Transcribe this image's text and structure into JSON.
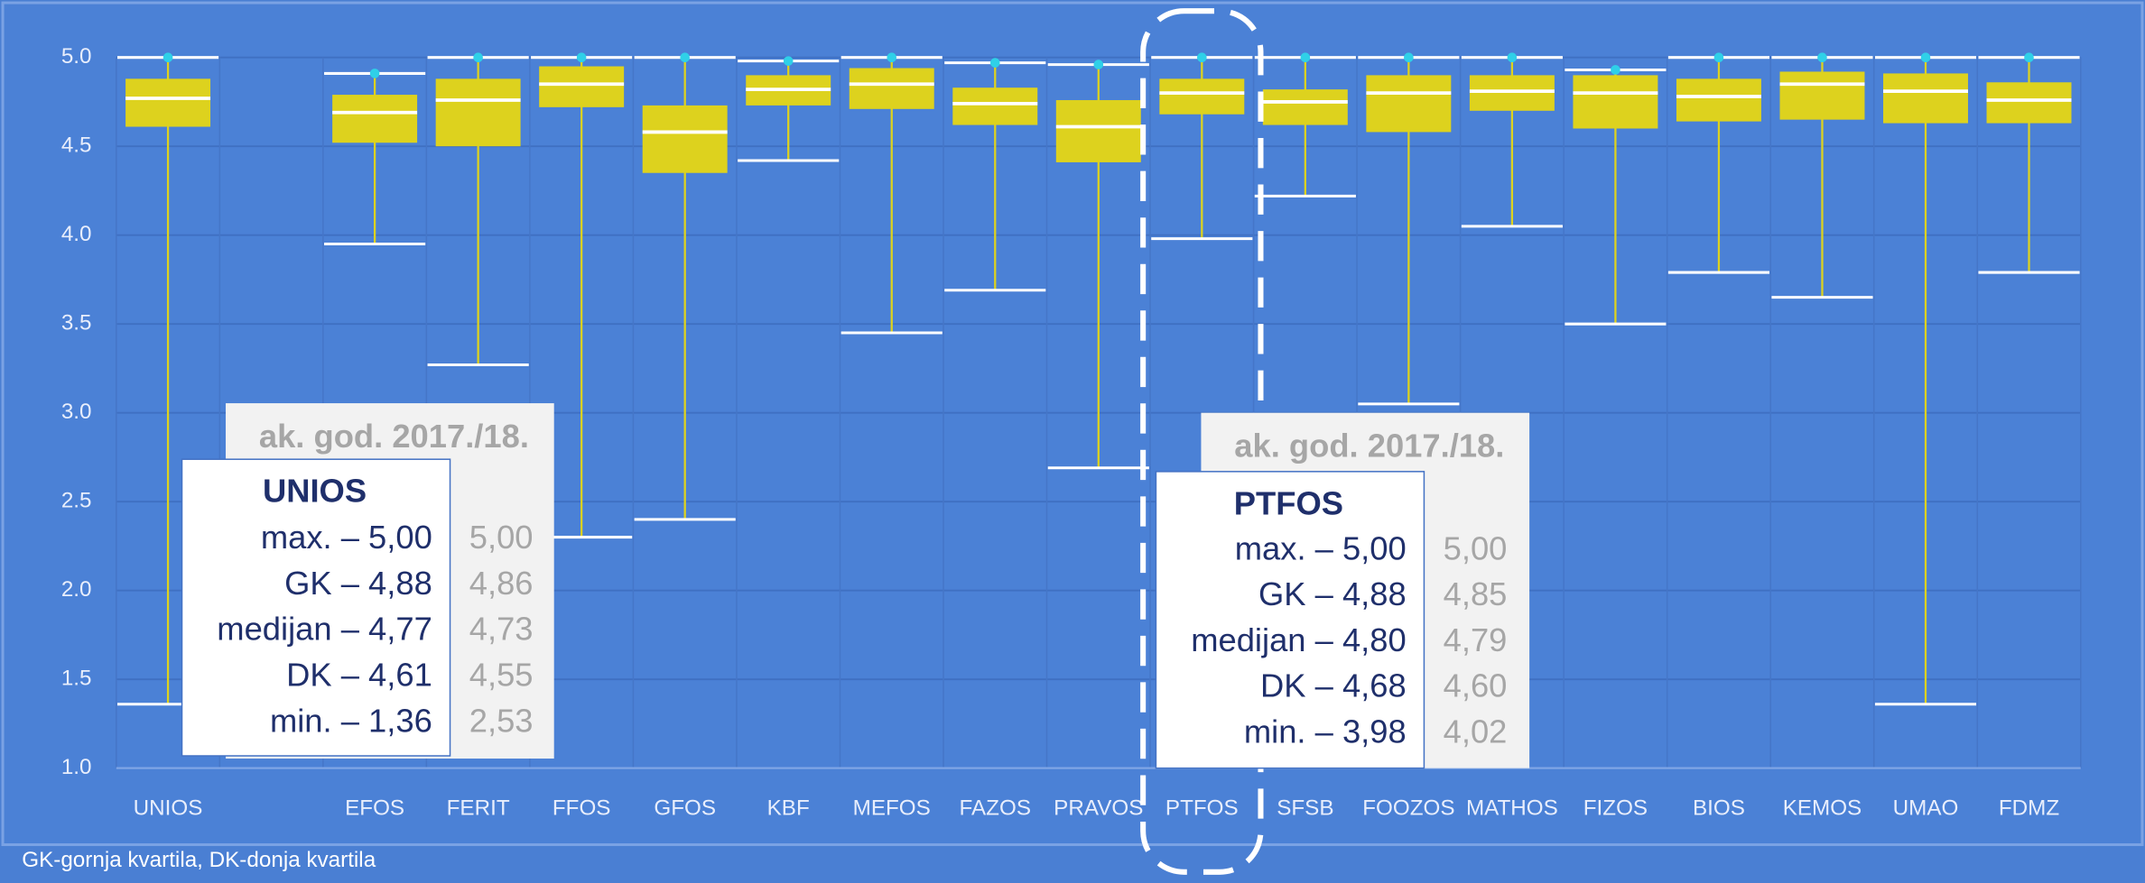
{
  "chart_data": {
    "type": "box",
    "categories": [
      "UNIOS",
      null,
      "EFOS",
      "FERIT",
      "FFOS",
      "GFOS",
      "KBF",
      "MEFOS",
      "FAZOS",
      "PRAVOS",
      "PTFOS",
      "SFSB",
      "FOOZOS",
      "MATHOS",
      "FIZOS",
      "BIOS",
      "KEMOS",
      "UMAO",
      "FDMZ"
    ],
    "boxes": [
      {
        "min": 1.36,
        "q1": 4.61,
        "median": 4.77,
        "q3": 4.88,
        "max": 5.0
      },
      null,
      {
        "min": 3.95,
        "q1": 4.52,
        "median": 4.69,
        "q3": 4.79,
        "max": 4.91
      },
      {
        "min": 3.27,
        "q1": 4.5,
        "median": 4.76,
        "q3": 4.88,
        "max": 5.0
      },
      {
        "min": 2.3,
        "q1": 4.72,
        "median": 4.85,
        "q3": 4.95,
        "max": 5.0
      },
      {
        "min": 2.4,
        "q1": 4.35,
        "median": 4.58,
        "q3": 4.73,
        "max": 5.0
      },
      {
        "min": 4.42,
        "q1": 4.73,
        "median": 4.82,
        "q3": 4.9,
        "max": 4.98
      },
      {
        "min": 3.45,
        "q1": 4.71,
        "median": 4.85,
        "q3": 4.94,
        "max": 5.0
      },
      {
        "min": 3.69,
        "q1": 4.62,
        "median": 4.74,
        "q3": 4.83,
        "max": 4.97
      },
      {
        "min": 2.69,
        "q1": 4.41,
        "median": 4.61,
        "q3": 4.76,
        "max": 4.96
      },
      {
        "min": 3.98,
        "q1": 4.68,
        "median": 4.8,
        "q3": 4.88,
        "max": 5.0
      },
      {
        "min": 4.22,
        "q1": 4.62,
        "median": 4.75,
        "q3": 4.82,
        "max": 5.0
      },
      {
        "min": 3.05,
        "q1": 4.58,
        "median": 4.8,
        "q3": 4.9,
        "max": 5.0
      },
      {
        "min": 4.05,
        "q1": 4.7,
        "median": 4.81,
        "q3": 4.9,
        "max": 5.0
      },
      {
        "min": 3.5,
        "q1": 4.6,
        "median": 4.8,
        "q3": 4.9,
        "max": 4.93
      },
      {
        "min": 3.79,
        "q1": 4.64,
        "median": 4.78,
        "q3": 4.88,
        "max": 5.0
      },
      {
        "min": 3.65,
        "q1": 4.65,
        "median": 4.85,
        "q3": 4.92,
        "max": 5.0
      },
      {
        "min": 1.36,
        "q1": 4.63,
        "median": 4.81,
        "q3": 4.91,
        "max": 5.0
      },
      {
        "min": 3.79,
        "q1": 4.63,
        "median": 4.76,
        "q3": 4.86,
        "max": 5.0
      }
    ],
    "box_color": "#ddd21e",
    "median_color": "#ffffff",
    "dot_color": "#2fd0e8",
    "ylim": [
      1,
      5
    ],
    "yticks": [
      {
        "value": 1,
        "label": "1.0"
      },
      {
        "value": 1.5,
        "label": "1.5"
      },
      {
        "value": 2,
        "label": "2.0"
      },
      {
        "value": 2.5,
        "label": "2.5"
      },
      {
        "value": 3,
        "label": "3.0"
      },
      {
        "value": 3.5,
        "label": "3.5"
      },
      {
        "value": 4,
        "label": "4.0"
      },
      {
        "value": 4.5,
        "label": "4.5"
      },
      {
        "value": 5,
        "label": "5.0"
      }
    ],
    "grid": true,
    "footnote": "GK-gornja kvartila, DK-donja kvartila",
    "annotations": [
      {
        "year_label": "ak. god. 2017./18.",
        "title": "UNIOS",
        "rows": [
          {
            "label": "max. – 5,00",
            "previous": "5,00"
          },
          {
            "label": "GK – 4,88",
            "previous": "4,86"
          },
          {
            "label": "medijan – 4,77",
            "previous": "4,73"
          },
          {
            "label": "DK – 4,61",
            "previous": "4,55"
          },
          {
            "label": "min. – 1,36",
            "previous": "2,53"
          }
        ]
      },
      {
        "year_label": "ak. god. 2017./18.",
        "title": "PTFOS",
        "rows": [
          {
            "label": "max. – 5,00",
            "previous": "5,00"
          },
          {
            "label": "GK – 4,88",
            "previous": "4,85"
          },
          {
            "label": "medijan – 4,80",
            "previous": "4,79"
          },
          {
            "label": "DK – 4,68",
            "previous": "4,60"
          },
          {
            "label": "min. – 3,98",
            "previous": "4,02"
          }
        ]
      }
    ]
  }
}
